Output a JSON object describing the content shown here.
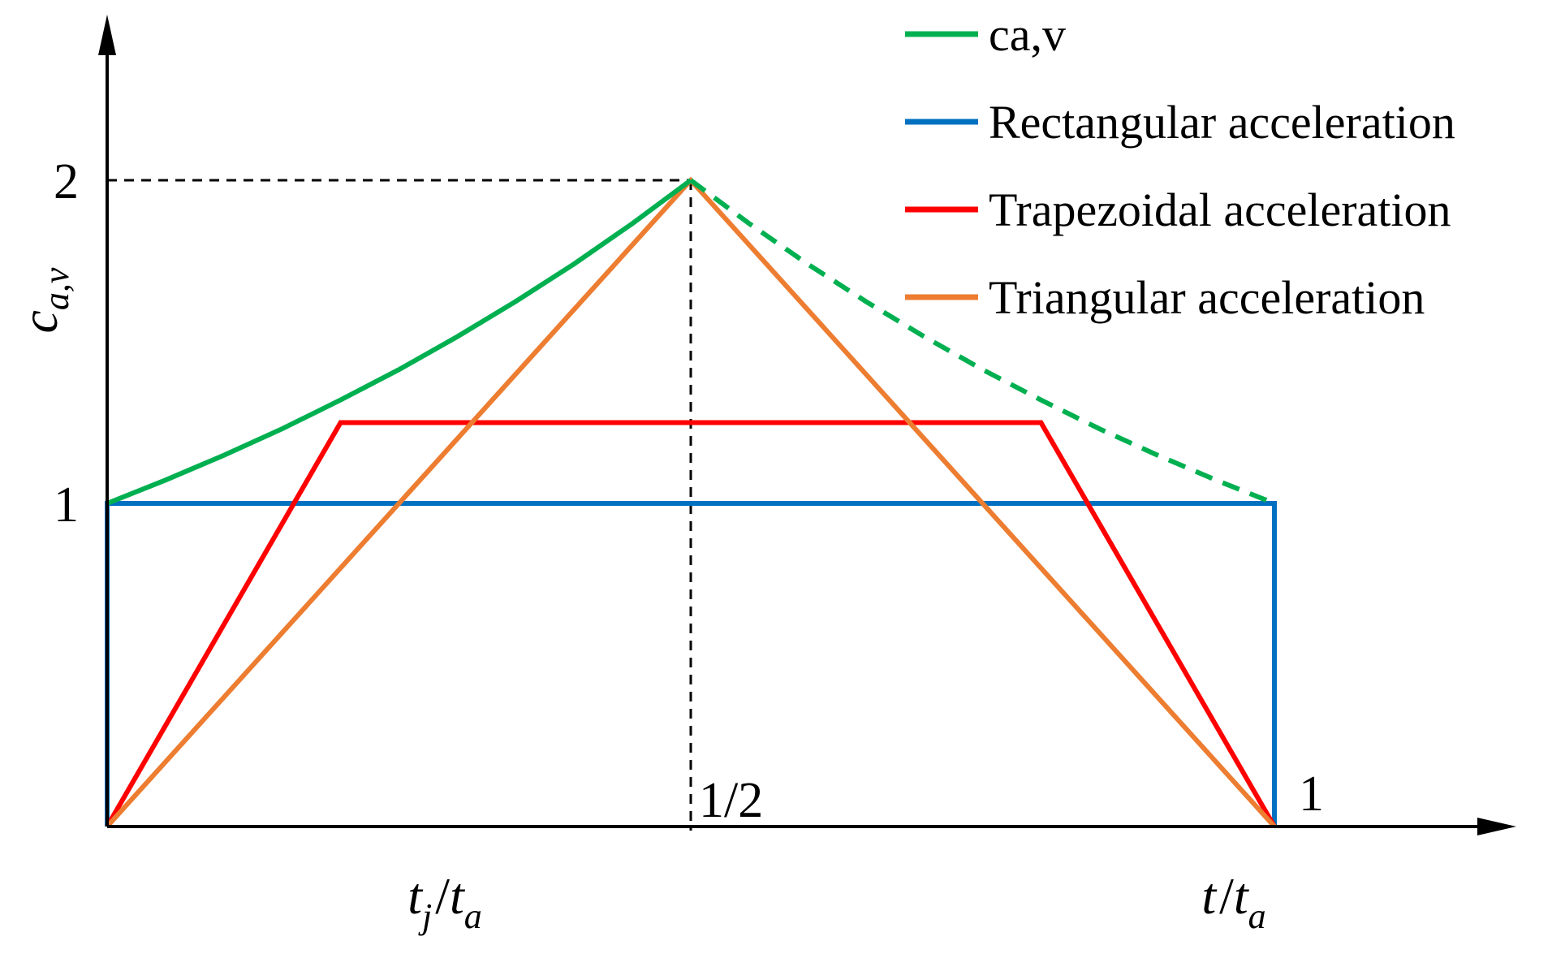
{
  "chart_data": {
    "type": "line",
    "title": "",
    "xlabel": {
      "main1": "t",
      "sub1": "j",
      "slash": "/",
      "main2": "t",
      "sub2": "a"
    },
    "xlabel_end": {
      "main1": "t",
      "slash": "/",
      "main2": "t",
      "sub2": "a"
    },
    "ylabel": {
      "main": "c",
      "sub": "a,v"
    },
    "xlim": [
      0,
      1
    ],
    "ylim": [
      0,
      2
    ],
    "x_ticks": [
      "1/2",
      "1"
    ],
    "y_ticks": [
      "1",
      "2"
    ],
    "grid": false,
    "legend_position": "top-right",
    "reference_point": {
      "x": 0.5,
      "y": 2
    },
    "series": [
      {
        "name": "ca,v",
        "color": "#00b050",
        "style": "solid",
        "x": [
          0,
          0.05,
          0.1,
          0.15,
          0.2,
          0.25,
          0.3,
          0.35,
          0.4,
          0.45,
          0.5
        ],
        "y": [
          1,
          1.072,
          1.149,
          1.231,
          1.32,
          1.414,
          1.516,
          1.625,
          1.741,
          1.866,
          2
        ]
      },
      {
        "name": "",
        "color": "#00b050",
        "style": "dashed",
        "x": [
          0.5,
          0.55,
          0.6,
          0.65,
          0.7,
          0.75,
          0.8,
          0.85,
          0.9,
          0.95,
          1
        ],
        "y": [
          2,
          1.866,
          1.741,
          1.625,
          1.516,
          1.414,
          1.32,
          1.231,
          1.149,
          1.072,
          1
        ]
      },
      {
        "name": "Rectangular acceleration",
        "color": "#0070c0",
        "style": "solid",
        "x": [
          0,
          0,
          1,
          1
        ],
        "y": [
          0,
          1,
          1,
          0
        ]
      },
      {
        "name": "Trapezoidal acceleration",
        "color": "#ff0000",
        "style": "solid",
        "x": [
          0,
          0.2,
          0.8,
          1
        ],
        "y": [
          0,
          1.25,
          1.25,
          0
        ]
      },
      {
        "name": "Triangular acceleration",
        "color": "#ed7d31",
        "style": "solid",
        "x": [
          0,
          0.5,
          1
        ],
        "y": [
          0,
          2,
          0
        ]
      }
    ]
  }
}
